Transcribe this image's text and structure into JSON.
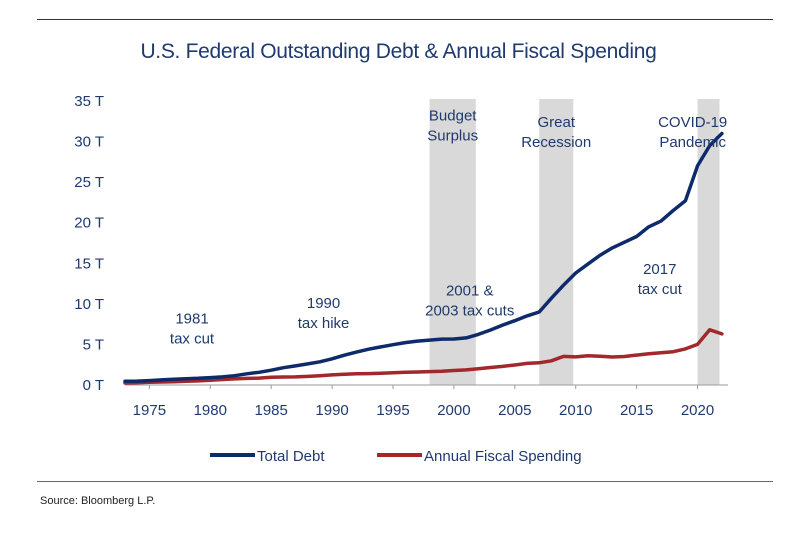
{
  "chart_data": {
    "type": "line",
    "title": "U.S. Federal Outstanding Debt & Annual Fiscal Spending",
    "xlabel": "",
    "ylabel": "",
    "xlim": [
      1973,
      2022.5
    ],
    "ylim": [
      0,
      35
    ],
    "x_ticks": [
      1975,
      1980,
      1985,
      1990,
      1995,
      2000,
      2005,
      2010,
      2015,
      2020
    ],
    "y_ticks": [
      {
        "value": 0,
        "label": "0 T"
      },
      {
        "value": 5,
        "label": "5 T"
      },
      {
        "value": 10,
        "label": "10 T"
      },
      {
        "value": 15,
        "label": "15 T"
      },
      {
        "value": 20,
        "label": "20 T"
      },
      {
        "value": 25,
        "label": "25 T"
      },
      {
        "value": 30,
        "label": "30 T"
      },
      {
        "value": 35,
        "label": "35 T"
      }
    ],
    "grid": "none",
    "legend_position": "bottom",
    "shaded_periods": [
      {
        "start": 1998,
        "end": 2001.8
      },
      {
        "start": 2007,
        "end": 2009.8
      },
      {
        "start": 2020,
        "end": 2021.8
      }
    ],
    "annotations": [
      {
        "lines": [
          "Budget",
          "Surplus"
        ],
        "x": 1999.9,
        "y": 32.6
      },
      {
        "lines": [
          "Great",
          "Recession"
        ],
        "x": 2008.4,
        "y": 31.8
      },
      {
        "lines": [
          "COVID-19",
          "Pandemic"
        ],
        "x": 2019.6,
        "y": 31.8
      },
      {
        "lines": [
          "1981",
          "tax cut"
        ],
        "x": 1978.5,
        "y": 7.6
      },
      {
        "lines": [
          "1990",
          "tax hike"
        ],
        "x": 1989.3,
        "y": 9.5
      },
      {
        "lines": [
          "2001 &",
          "2003 tax cuts"
        ],
        "x": 2001.3,
        "y": 11.0
      },
      {
        "lines": [
          "2017",
          "tax cut"
        ],
        "x": 2016.9,
        "y": 13.7
      }
    ],
    "series": [
      {
        "name": "Total Debt",
        "color": "#0d2a6b",
        "x": [
          1973,
          1974,
          1975,
          1976,
          1977,
          1978,
          1979,
          1980,
          1981,
          1982,
          1983,
          1984,
          1985,
          1986,
          1987,
          1988,
          1989,
          1990,
          1991,
          1992,
          1993,
          1994,
          1995,
          1996,
          1997,
          1998,
          1999,
          2000,
          2001,
          2002,
          2003,
          2004,
          2005,
          2006,
          2007,
          2008,
          2009,
          2010,
          2011,
          2012,
          2013,
          2014,
          2015,
          2016,
          2017,
          2018,
          2019,
          2020,
          2021,
          2022
        ],
        "values": [
          0.46,
          0.48,
          0.54,
          0.63,
          0.71,
          0.78,
          0.83,
          0.91,
          1.0,
          1.15,
          1.38,
          1.57,
          1.82,
          2.13,
          2.35,
          2.6,
          2.86,
          3.23,
          3.67,
          4.06,
          4.41,
          4.69,
          4.97,
          5.22,
          5.41,
          5.53,
          5.66,
          5.67,
          5.81,
          6.23,
          6.78,
          7.38,
          7.93,
          8.51,
          9.0,
          10.7,
          12.3,
          13.8,
          14.9,
          16.0,
          16.9,
          17.6,
          18.3,
          19.5,
          20.2,
          21.5,
          22.7,
          27.0,
          29.5,
          31.0
        ]
      },
      {
        "name": "Annual Fiscal Spending",
        "color": "#a3282b",
        "x": [
          1973,
          1974,
          1975,
          1976,
          1977,
          1978,
          1979,
          1980,
          1981,
          1982,
          1983,
          1984,
          1985,
          1986,
          1987,
          1988,
          1989,
          1990,
          1991,
          1992,
          1993,
          1994,
          1995,
          1996,
          1997,
          1998,
          1999,
          2000,
          2001,
          2002,
          2003,
          2004,
          2005,
          2006,
          2007,
          2008,
          2009,
          2010,
          2011,
          2012,
          2013,
          2014,
          2015,
          2016,
          2017,
          2018,
          2019,
          2020,
          2021,
          2022
        ],
        "values": [
          0.25,
          0.27,
          0.33,
          0.37,
          0.41,
          0.46,
          0.5,
          0.59,
          0.68,
          0.75,
          0.81,
          0.85,
          0.95,
          0.99,
          1.0,
          1.06,
          1.14,
          1.25,
          1.32,
          1.38,
          1.41,
          1.46,
          1.52,
          1.56,
          1.6,
          1.65,
          1.7,
          1.79,
          1.86,
          2.01,
          2.16,
          2.29,
          2.47,
          2.66,
          2.73,
          2.98,
          3.52,
          3.46,
          3.6,
          3.54,
          3.45,
          3.51,
          3.69,
          3.85,
          3.98,
          4.11,
          4.45,
          5.0,
          6.8,
          6.3
        ]
      }
    ]
  },
  "source": "Source: Bloomberg L.P."
}
